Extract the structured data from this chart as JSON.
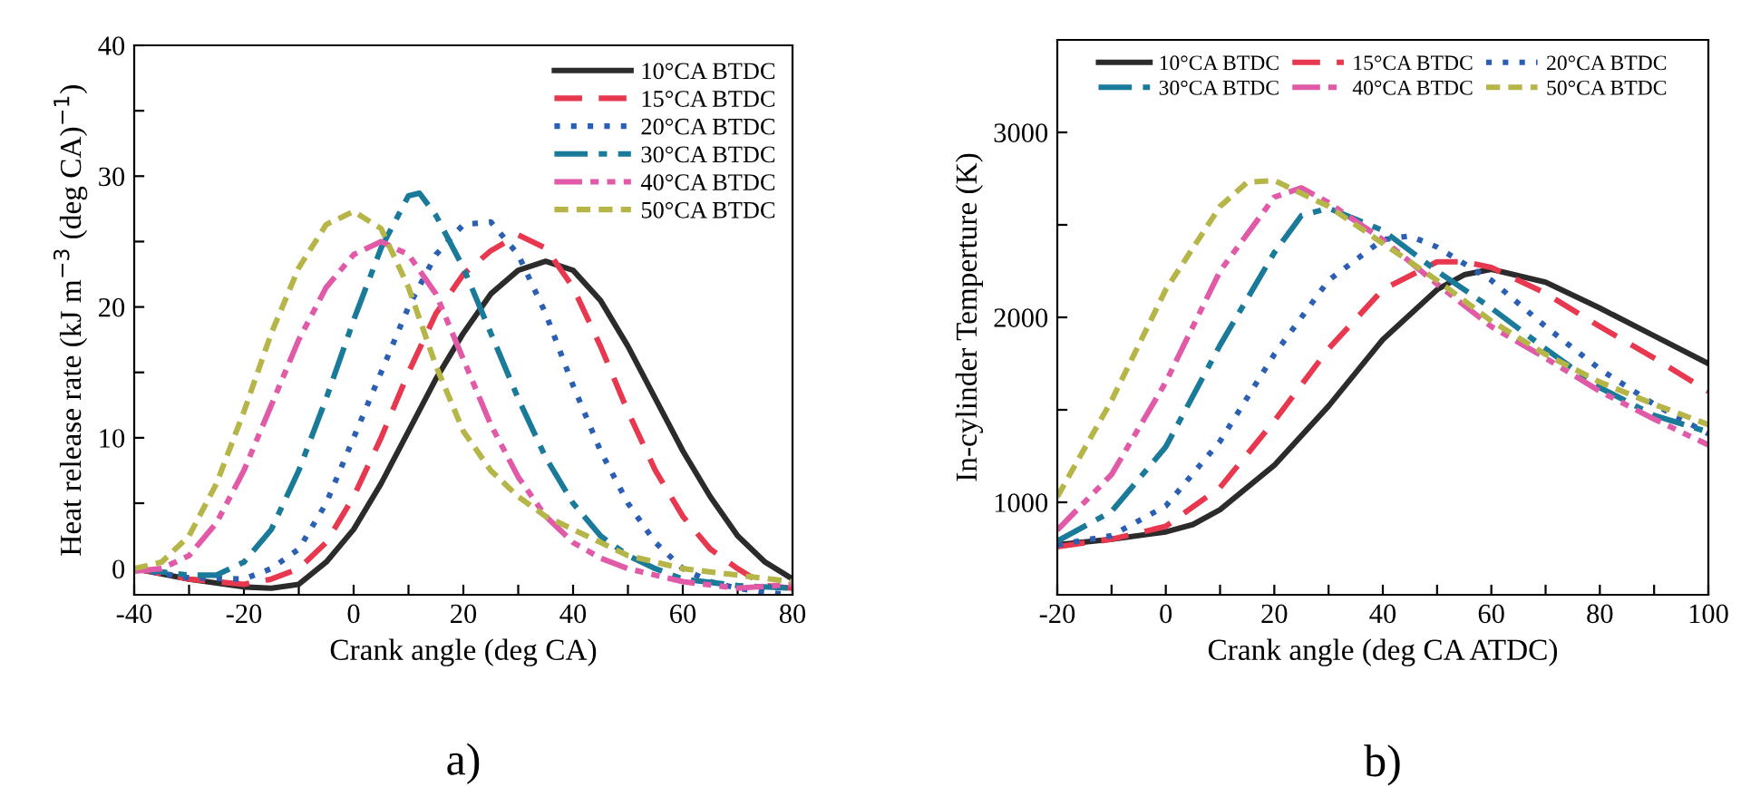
{
  "chart_data": [
    {
      "type": "line",
      "xlabel": "Crank angle (deg CA)",
      "ylabel": "Heat release rate (kJ m$^{−3}$ (deg CA)$^{−1}$)",
      "xlim": [
        -40,
        80
      ],
      "ylim": [
        -2,
        40
      ],
      "xticks": [
        -40,
        {
          "value": -30,
          "label": null
        },
        -20,
        {
          "value": -10,
          "label": null
        },
        0,
        {
          "value": 10,
          "label": null
        },
        20,
        {
          "value": 30,
          "label": null
        },
        40,
        {
          "value": 50,
          "label": null
        },
        60,
        {
          "value": 70,
          "label": null
        },
        80
      ],
      "yticks": [
        0,
        {
          "value": 5,
          "label": null
        },
        10,
        {
          "value": 15,
          "label": null
        },
        20,
        {
          "value": 25,
          "label": null
        },
        30,
        {
          "value": 35,
          "label": null
        },
        40
      ],
      "legend": "top right",
      "grid": false,
      "annotations": [
        "a)"
      ],
      "series": [
        {
          "name": "10°CA BTDC",
          "color": "#2b2b2b",
          "line_style": "solid",
          "x": [
            -40,
            -30,
            -20,
            -15,
            -10,
            -5,
            0,
            5,
            10,
            15,
            20,
            25,
            30,
            35,
            40,
            45,
            50,
            55,
            60,
            65,
            70,
            75,
            80
          ],
          "values": [
            0,
            -0.8,
            -1.4,
            -1.5,
            -1.2,
            0.5,
            3,
            6.5,
            10.5,
            14.5,
            18,
            21,
            22.8,
            23.5,
            22.8,
            20.5,
            17,
            13,
            9,
            5.5,
            2.5,
            0.5,
            -0.8
          ]
        },
        {
          "name": "15°CA BTDC",
          "color": "#e8384f",
          "line_style": "dashed",
          "x": [
            -40,
            -30,
            -20,
            -15,
            -10,
            -5,
            0,
            5,
            10,
            15,
            20,
            25,
            30,
            35,
            40,
            45,
            50,
            55,
            60,
            65,
            70,
            75,
            80
          ],
          "values": [
            0,
            -0.8,
            -1.2,
            -0.8,
            0,
            2,
            5.5,
            10,
            15,
            19.5,
            22.5,
            24.3,
            25.5,
            24.5,
            21.5,
            17,
            12,
            7.5,
            4,
            1.5,
            0,
            -1.3,
            -1.5
          ]
        },
        {
          "name": "20°CA BTDC",
          "color": "#2b5fb4",
          "line_style": "dotted",
          "x": [
            -40,
            -30,
            -20,
            -15,
            -10,
            -5,
            0,
            5,
            10,
            15,
            20,
            25,
            30,
            35,
            40,
            45,
            50,
            55,
            60,
            65,
            70,
            75,
            80
          ],
          "values": [
            0,
            -0.7,
            -0.8,
            0,
            1.5,
            5,
            10,
            15,
            20,
            24,
            26.3,
            26.5,
            24,
            19.5,
            14,
            9,
            5,
            2,
            0,
            -1,
            -1.5,
            -1.8,
            -2
          ]
        },
        {
          "name": "30°CA BTDC",
          "color": "#1a7a9a",
          "line_style": "dashdot",
          "x": [
            -40,
            -30,
            -25,
            -20,
            -15,
            -10,
            -5,
            0,
            5,
            10,
            12,
            15,
            20,
            25,
            30,
            35,
            40,
            45,
            50,
            55,
            60,
            70,
            80
          ],
          "values": [
            0,
            -0.5,
            -0.5,
            0.5,
            3,
            7.5,
            13,
            19,
            24.5,
            28.5,
            28.7,
            27,
            23,
            18,
            13,
            8.5,
            5,
            2.5,
            1,
            0,
            -0.8,
            -1.3,
            -1.5
          ]
        },
        {
          "name": "40°CA BTDC",
          "color": "#e05aa8",
          "line_style": "dashdotdot",
          "x": [
            -40,
            -35,
            -30,
            -25,
            -20,
            -15,
            -10,
            -5,
            0,
            5,
            10,
            15,
            20,
            25,
            30,
            35,
            40,
            45,
            50,
            55,
            60,
            70,
            80
          ],
          "values": [
            -0.2,
            0,
            1,
            3.5,
            7.5,
            12.5,
            17.5,
            21.5,
            24,
            25,
            24,
            21,
            16,
            11,
            7,
            4,
            2,
            0.8,
            0,
            -0.5,
            -1,
            -1.5,
            -1.2
          ]
        },
        {
          "name": "50°CA BTDC",
          "color": "#b5b548",
          "line_style": "shortdash",
          "x": [
            -40,
            -35,
            -30,
            -25,
            -20,
            -15,
            -10,
            -5,
            0,
            5,
            10,
            15,
            20,
            25,
            30,
            35,
            40,
            45,
            50,
            60,
            70,
            80
          ],
          "values": [
            0,
            0.5,
            2.5,
            6.5,
            12,
            18,
            23,
            26.3,
            27.3,
            26,
            21.5,
            15.5,
            10.5,
            7.5,
            5.5,
            4,
            3,
            2,
            1,
            0,
            -0.5,
            -1
          ]
        }
      ]
    },
    {
      "type": "line",
      "xlabel": "Crank angle (deg CA ATDC)",
      "ylabel": "In-cylinder Temperture (K)",
      "xlim": [
        -20,
        100
      ],
      "ylim": [
        500,
        3500
      ],
      "xticks": [
        -20,
        {
          "value": -10,
          "label": null
        },
        0,
        {
          "value": 10,
          "label": null
        },
        20,
        {
          "value": 30,
          "label": null
        },
        40,
        {
          "value": 50,
          "label": null
        },
        60,
        {
          "value": 70,
          "label": null
        },
        80,
        {
          "value": 90,
          "label": null
        },
        100
      ],
      "yticks": [
        1000,
        {
          "value": 1500,
          "label": null
        },
        2000,
        {
          "value": 2500,
          "label": null
        },
        3000
      ],
      "legend": "top",
      "grid": false,
      "annotations": [
        "b)"
      ],
      "series": [
        {
          "name": "10°CA BTDC",
          "color": "#2b2b2b",
          "line_style": "solid",
          "x": [
            -20,
            -10,
            0,
            5,
            10,
            20,
            30,
            40,
            50,
            55,
            60,
            70,
            80,
            90,
            100
          ],
          "values": [
            770,
            800,
            840,
            880,
            960,
            1200,
            1520,
            1880,
            2150,
            2230,
            2260,
            2190,
            2050,
            1900,
            1750
          ]
        },
        {
          "name": "15°CA BTDC",
          "color": "#e8384f",
          "line_style": "dashed",
          "x": [
            -20,
            -10,
            0,
            10,
            20,
            30,
            40,
            50,
            55,
            60,
            70,
            80,
            90,
            100
          ],
          "values": [
            760,
            800,
            870,
            1080,
            1440,
            1830,
            2150,
            2300,
            2300,
            2270,
            2130,
            1950,
            1780,
            1600
          ]
        },
        {
          "name": "20°CA BTDC",
          "color": "#2b5fb4",
          "line_style": "dotted",
          "x": [
            -20,
            -10,
            0,
            10,
            20,
            30,
            40,
            45,
            50,
            60,
            70,
            80,
            90,
            100
          ],
          "values": [
            770,
            820,
            980,
            1330,
            1800,
            2200,
            2420,
            2440,
            2380,
            2200,
            1950,
            1720,
            1530,
            1370
          ]
        },
        {
          "name": "30°CA BTDC",
          "color": "#1a7a9a",
          "line_style": "dashdot",
          "x": [
            -20,
            -10,
            0,
            10,
            20,
            25,
            30,
            40,
            50,
            60,
            70,
            80,
            90,
            100
          ],
          "values": [
            790,
            950,
            1300,
            1850,
            2350,
            2550,
            2590,
            2470,
            2250,
            2050,
            1830,
            1620,
            1470,
            1380
          ]
        },
        {
          "name": "40°CA BTDC",
          "color": "#e05aa8",
          "line_style": "dashdotdot",
          "x": [
            -20,
            -10,
            0,
            10,
            20,
            25,
            30,
            40,
            50,
            60,
            70,
            80,
            90,
            100
          ],
          "values": [
            850,
            1150,
            1650,
            2250,
            2650,
            2700,
            2620,
            2420,
            2180,
            1950,
            1780,
            1600,
            1450,
            1310
          ]
        },
        {
          "name": "50°CA BTDC",
          "color": "#b5b548",
          "line_style": "shortdash",
          "x": [
            -20,
            -10,
            0,
            10,
            15,
            20,
            30,
            40,
            50,
            60,
            70,
            80,
            90,
            100
          ],
          "values": [
            1030,
            1550,
            2150,
            2600,
            2730,
            2740,
            2600,
            2400,
            2200,
            1980,
            1800,
            1650,
            1530,
            1420
          ]
        }
      ]
    }
  ]
}
